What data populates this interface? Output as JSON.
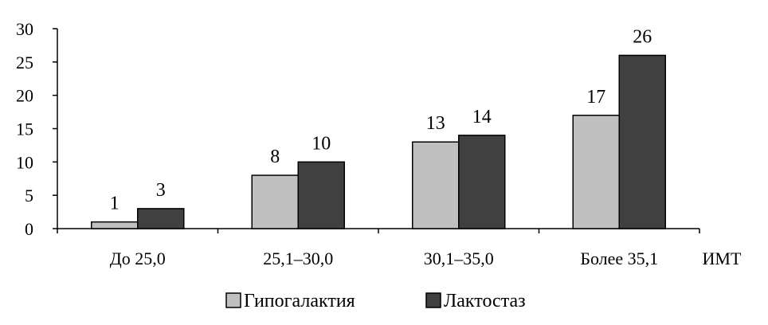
{
  "chart_data": {
    "type": "bar",
    "categories": [
      "До 25,0",
      "25,1–30,0",
      "30,1–35,0",
      "Более 35,1"
    ],
    "series": [
      {
        "name": "Гипогалактия",
        "values": [
          1,
          8,
          13,
          17
        ],
        "color": "#c0c0c0"
      },
      {
        "name": "Лактостаз",
        "values": [
          3,
          10,
          14,
          26
        ],
        "color": "#404040"
      }
    ],
    "xlabel": "ИМТ",
    "ylabel": "",
    "ylim": [
      0,
      30
    ],
    "yticks": [
      0,
      5,
      10,
      15,
      20,
      25,
      30
    ],
    "grid": false,
    "legend": "bottom",
    "data_labels": true
  }
}
